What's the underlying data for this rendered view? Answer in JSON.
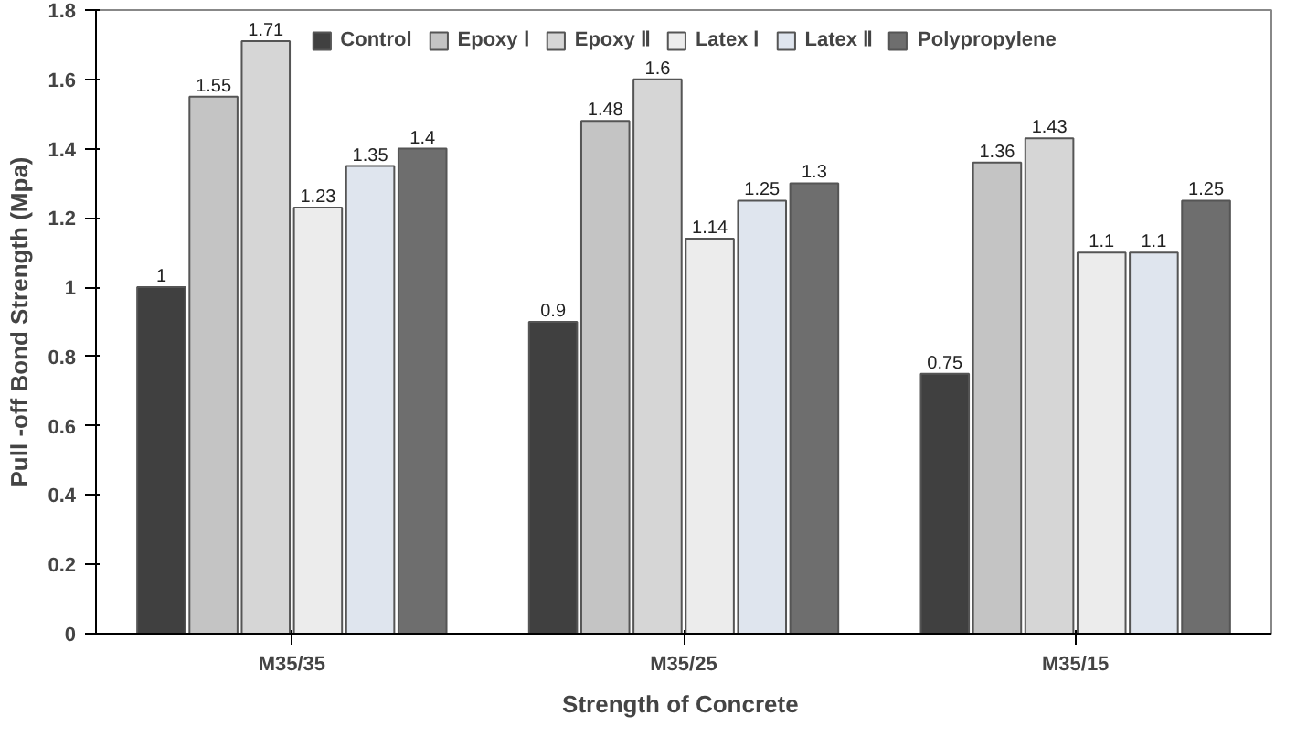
{
  "chart_data": {
    "type": "bar",
    "xlabel": "Strength  of Concrete",
    "ylabel": "Pull -off Bond Strength (Mpa)",
    "categories": [
      "M35/35",
      "M35/25",
      "M35/15"
    ],
    "series": [
      {
        "name": "Control",
        "color": "#404040",
        "values": [
          1,
          0.9,
          0.75
        ]
      },
      {
        "name": "Epoxy Ⅰ",
        "color": "#c4c4c4",
        "values": [
          1.55,
          1.48,
          1.36
        ]
      },
      {
        "name": "Epoxy Ⅱ",
        "color": "#d6d6d6",
        "values": [
          1.71,
          1.6,
          1.43
        ]
      },
      {
        "name": "Latex Ⅰ",
        "color": "#ececec",
        "values": [
          1.23,
          1.14,
          1.1
        ]
      },
      {
        "name": "Latex Ⅱ",
        "color": "#dfe5ee",
        "values": [
          1.35,
          1.25,
          1.1
        ]
      },
      {
        "name": "Polypropylene",
        "color": "#6e6e6e",
        "values": [
          1.4,
          1.3,
          1.25
        ]
      }
    ],
    "ylim": [
      0,
      1.8
    ],
    "yticks": [
      0,
      0.2,
      0.4,
      0.6,
      0.8,
      1,
      1.2,
      1.4,
      1.6,
      1.8
    ],
    "data_labels": true,
    "legend": "top",
    "grid": false
  }
}
